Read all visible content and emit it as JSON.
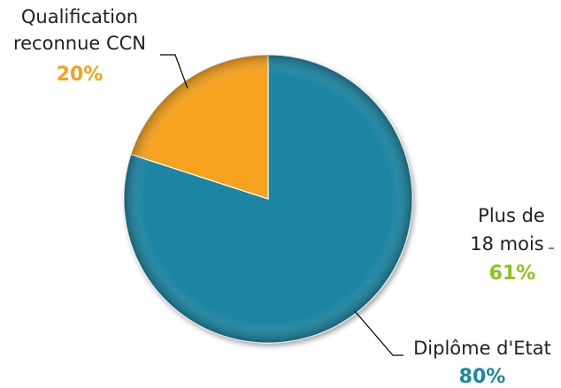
{
  "chart_data": {
    "type": "pie",
    "title": "",
    "slices": [
      {
        "label": "Diplôme d'Etat",
        "value": 80,
        "value_label": "80%",
        "color": "#1d85a3"
      },
      {
        "label_lines": [
          "Qualification",
          "reconnue CCN"
        ],
        "value": 20,
        "value_label": "20%",
        "color": "#f6a21c"
      }
    ],
    "extra_label": {
      "lines": [
        "Plus de",
        "18 mois"
      ],
      "value_label": "61%",
      "color": "#8dc21f"
    },
    "colors": {
      "name_text": "#1f1f1f",
      "leader_line": "#000000"
    }
  }
}
